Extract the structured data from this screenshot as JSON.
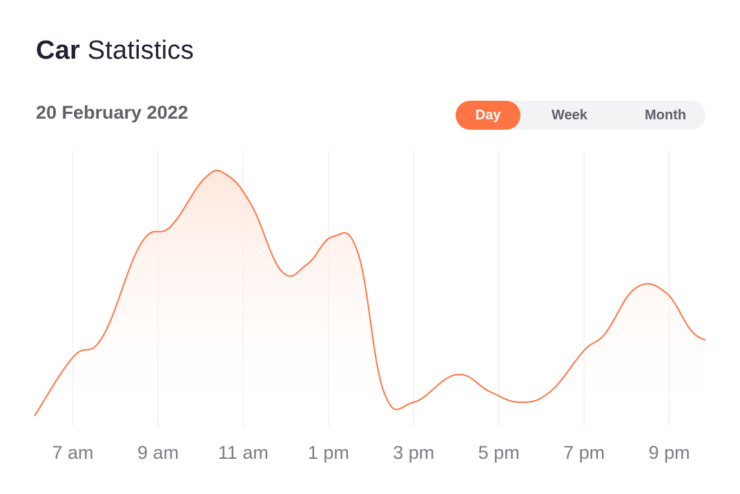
{
  "title": {
    "bold": "Car",
    "regular": "Statistics"
  },
  "date": "20 February 2022",
  "tabs": [
    {
      "label": "Day",
      "selected": true
    },
    {
      "label": "Week",
      "selected": false
    },
    {
      "label": "Month",
      "selected": false
    }
  ],
  "colors": {
    "accent": "#ff7444",
    "grid": "#efeff1",
    "tick_text": "#7b7c85",
    "fill_top": "#ffe3d6"
  },
  "chart_data": {
    "type": "area",
    "x_ticks": [
      "7 am",
      "9 am",
      "11 am",
      "1 pm",
      "3 pm",
      "5 pm",
      "7 pm",
      "9 pm"
    ],
    "x_tick_hours": [
      7,
      9,
      11,
      13,
      15,
      17,
      19,
      21
    ],
    "x_range": [
      6.1,
      21.85
    ],
    "ylim": [
      0,
      100
    ],
    "grid": "vertical",
    "series": [
      {
        "x": [
          6.1,
          7.0,
          7.7,
          8.6,
          9.3,
          10.1,
          10.6,
          11.2,
          11.9,
          12.5,
          13.1,
          13.7,
          14.3,
          15.0,
          16.0,
          16.8,
          17.5,
          18.2,
          19.0,
          19.5,
          20.2,
          20.9,
          21.5,
          21.85
        ],
        "values": [
          23,
          40,
          46,
          73,
          78,
          92,
          93,
          84,
          65,
          67,
          75,
          70,
          30,
          27,
          35,
          30,
          27,
          30,
          42,
          47,
          60,
          59,
          48,
          45
        ]
      }
    ]
  }
}
